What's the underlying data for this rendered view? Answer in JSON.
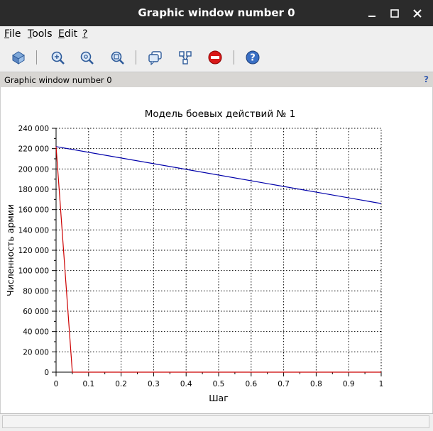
{
  "window": {
    "title": "Graphic window number 0"
  },
  "menu": {
    "file": {
      "underlined": "F",
      "rest": "ile"
    },
    "tools": {
      "underlined": "T",
      "rest": "ools"
    },
    "edit": {
      "underlined": "E",
      "rest": "dit"
    },
    "help": {
      "underlined": "?",
      "rest": ""
    }
  },
  "toolbar": {
    "icons": [
      "rotate-icon",
      "zoom-in-icon",
      "zoom-out-icon",
      "zoom-rect-icon",
      "datatip-icon",
      "edit-icon",
      "stop-icon",
      "help-icon"
    ]
  },
  "infobar": {
    "label": "Graphic window number 0",
    "help_label": "?"
  },
  "chart_data": {
    "type": "line",
    "title": "Модель боевых действий № 1",
    "xlabel": "Шаг",
    "ylabel": "Численность армии",
    "xlim": [
      0,
      1
    ],
    "ylim": [
      0,
      240000
    ],
    "x_ticks": [
      "0",
      "0.1",
      "0.2",
      "0.3",
      "0.4",
      "0.5",
      "0.6",
      "0.7",
      "0.8",
      "0.9",
      "1"
    ],
    "y_ticks": [
      "0",
      "20 000",
      "40 000",
      "60 000",
      "80 000",
      "100 000",
      "120 000",
      "140 000",
      "160 000",
      "180 000",
      "200 000",
      "220 000",
      "240 000"
    ],
    "grid": true,
    "series": [
      {
        "color": "#0000aa",
        "x": [
          0,
          1
        ],
        "y": [
          222000,
          166000
        ]
      },
      {
        "color": "#cc0000",
        "x": [
          0,
          0.05,
          1
        ],
        "y": [
          222000,
          0,
          0
        ]
      }
    ]
  },
  "statusbar": {
    "text": ""
  }
}
